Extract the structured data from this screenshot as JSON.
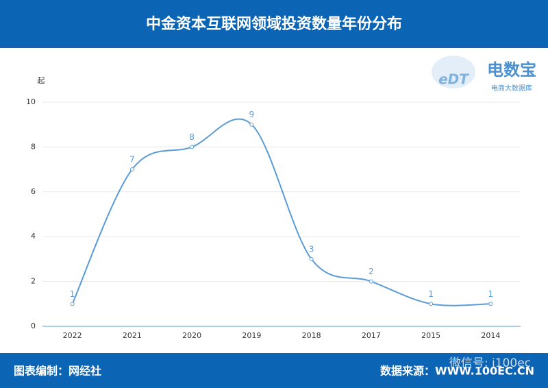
{
  "chart_data": {
    "type": "line",
    "title": "中金资本互联网领域投资数量年份分布",
    "y_axis_label": "起",
    "categories": [
      "2022",
      "2021",
      "2020",
      "2019",
      "2018",
      "2017",
      "2015",
      "2014"
    ],
    "values": [
      1,
      7,
      8,
      9,
      3,
      2,
      1,
      1
    ],
    "color": "#5b9bd5",
    "ylim": [
      0,
      10
    ],
    "yticks": [
      0,
      2,
      4,
      6,
      8,
      10
    ],
    "grid": true
  },
  "logo": {
    "mark": "eDT",
    "name": "电数宝",
    "tagline": "电商大数据库"
  },
  "footer": {
    "left": "图表编制：网经社",
    "right": "数据来源：WWW.100EC.CN"
  },
  "watermark": "微信号: i100ec"
}
